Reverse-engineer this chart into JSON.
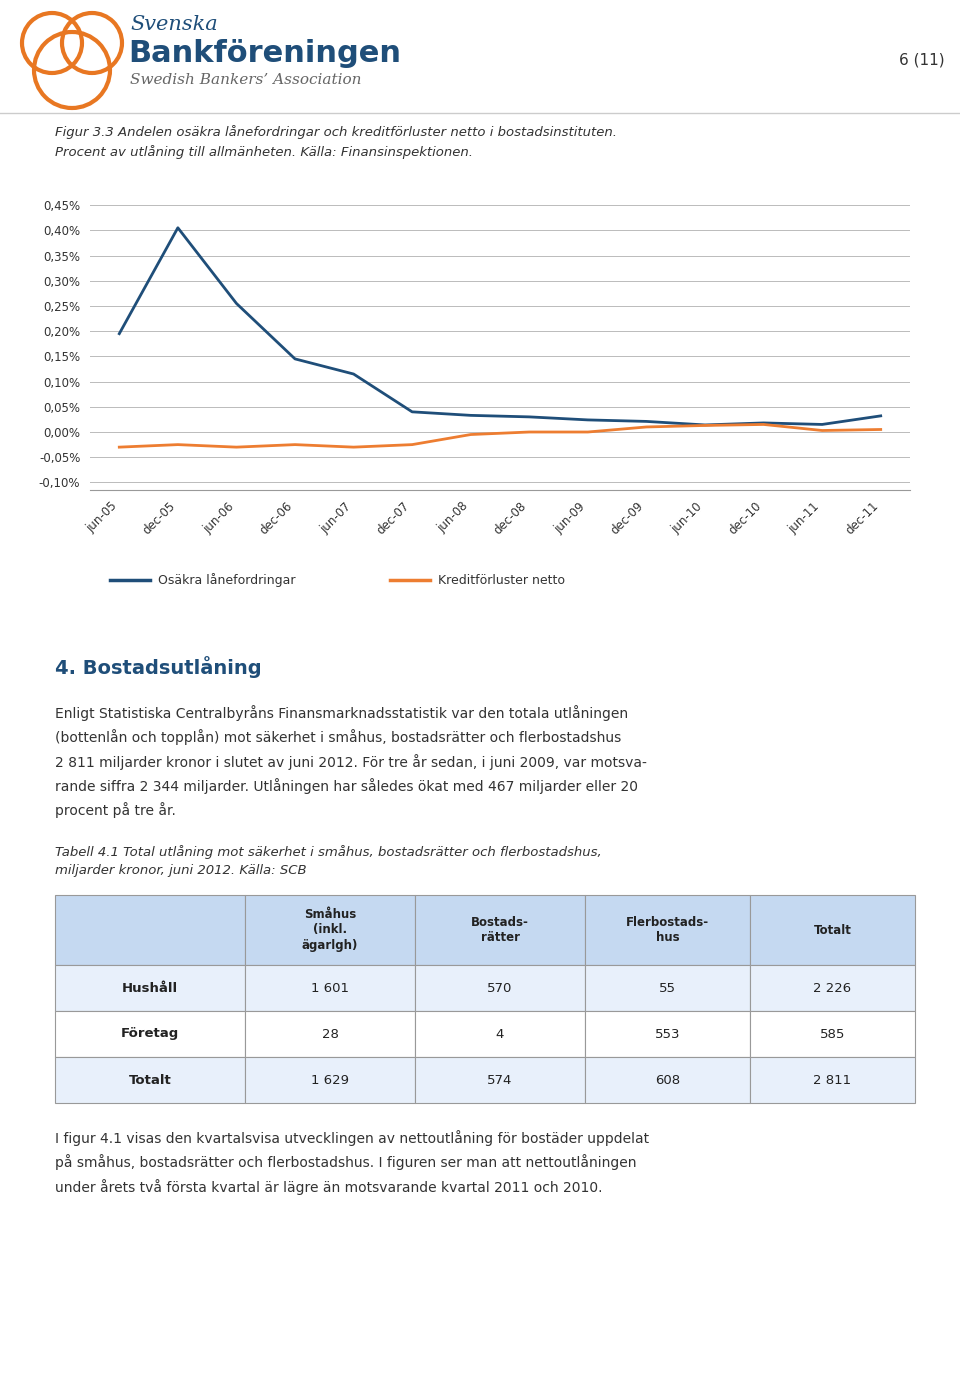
{
  "fig_caption": "Figur 3.3 Andelen osäkra lånefordringar och kreditförluster netto i bostadsinstituten.\nProcent av utlåning till allmänheten. Källa: Finansinspektionen.",
  "x_labels": [
    "jun-05",
    "dec-05",
    "jun-06",
    "dec-06",
    "jun-07",
    "dec-07",
    "jun-08",
    "dec-08",
    "jun-09",
    "dec-09",
    "jun-10",
    "dec-10",
    "jun-11",
    "dec-11"
  ],
  "blue_line": [
    0.195,
    0.405,
    0.255,
    0.145,
    0.115,
    0.04,
    0.033,
    0.03,
    0.024,
    0.021,
    0.014,
    0.018,
    0.015,
    0.032
  ],
  "orange_line": [
    -0.03,
    -0.025,
    -0.03,
    -0.025,
    -0.03,
    -0.025,
    -0.005,
    0.0,
    0.0,
    0.01,
    0.013,
    0.015,
    0.003,
    0.005
  ],
  "y_tick_labels": [
    "-0,10%",
    "-0,05%",
    "0,00%",
    "0,05%",
    "0,10%",
    "0,15%",
    "0,20%",
    "0,25%",
    "0,30%",
    "0,35%",
    "0,40%",
    "0,45%"
  ],
  "y_tick_values": [
    -0.1,
    -0.05,
    0.0,
    0.05,
    0.1,
    0.15,
    0.2,
    0.25,
    0.3,
    0.35,
    0.4,
    0.45
  ],
  "legend_blue": "Osäkra lånefordringar",
  "legend_orange": "Kreditförluster netto",
  "blue_color": "#1F4E79",
  "orange_color": "#ED7D31",
  "grid_color": "#BBBBBB",
  "section_title_text": "4. Bostadsutlåning",
  "section_title_color": "#1F4E79",
  "body_text1": "Enligt Statistiska Centralbyråns Finansmarknadsstatistik var den totala utlåningen\n(bottenlån och topplån) mot säkerhet i småhus, bostadsrätter och flerbostadshus\n2 811 miljarder kronor i slutet av juni 2012. För tre år sedan, i juni 2009, var motsva-\nrande siffra 2 344 miljarder. Utlåningen har således ökat med 467 miljarder eller 20\nprocent på tre år.",
  "table_caption": "Tabell 4.1 Total utlåning mot säkerhet i småhus, bostadsrätter och flerbostadshus,\nmiljarder kronor, juni 2012. Källa: SCB",
  "table_col_headers": [
    "Småhus\n(inkl.\nägarlgh)",
    "Bostads-\nrätter",
    "Flerbostads-\nhus",
    "Totalt"
  ],
  "table_row_headers": [
    "Hushåll",
    "Företag",
    "Totalt"
  ],
  "table_data_str": [
    [
      "1 601",
      "570",
      "55",
      "2 226"
    ],
    [
      "28",
      "4",
      "553",
      "585"
    ],
    [
      "1 629",
      "574",
      "608",
      "2 811"
    ]
  ],
  "body_text2": "I figur 4.1 visas den kvartalsvisa utvecklingen av nettoutlåning för bostäder uppdelat\npå småhus, bostadsrätter och flerbostadshus. I figuren ser man att nettoutlåningen\nunder årets två första kvartal är lägre än motsvarande kvartal 2011 och 2010.",
  "page_number": "6 (11)",
  "background_color": "#FFFFFF",
  "table_header_bg": "#C5D9F1",
  "logo_color": "#E87722",
  "text_dark": "#333333",
  "header_blue": "#1F4E79"
}
